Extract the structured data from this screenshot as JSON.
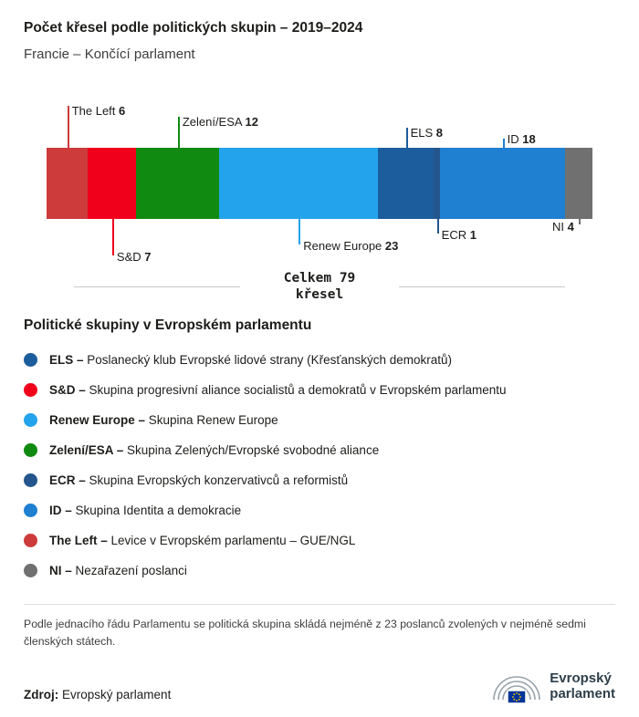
{
  "header": {
    "title": "Počet křesel podle politických skupin – 2019–2024",
    "subtitle": "Francie – Končící parlament"
  },
  "chart_data": {
    "type": "bar",
    "stacked": true,
    "orientation": "horizontal",
    "title": "Počet křesel podle politických skupin – 2019–2024",
    "subtitle": "Francie – Končící parlament",
    "total": 79,
    "total_text": "Celkem 79\nkřesel",
    "xlim": [
      0,
      79
    ],
    "categories": [
      "The Left",
      "S&D",
      "Zelení/ESA",
      "Renew Europe",
      "ELS",
      "ECR",
      "ID",
      "NI"
    ],
    "values": [
      6,
      7,
      12,
      23,
      8,
      1,
      18,
      4
    ],
    "segments": [
      {
        "name": "The Left",
        "value": 6,
        "color": "#cd3b3b",
        "label_pos": "above",
        "tier": 3
      },
      {
        "name": "S&D",
        "value": 7,
        "color": "#f0001b",
        "label_pos": "below",
        "tier": 3
      },
      {
        "name": "Zelení/ESA",
        "value": 12,
        "color": "#108a10",
        "label_pos": "above",
        "tier": 2
      },
      {
        "name": "Renew Europe",
        "value": 23,
        "color": "#23a3eb",
        "label_pos": "below",
        "tier": 2
      },
      {
        "name": "ELS",
        "value": 8,
        "color": "#1c5d9e",
        "label_pos": "above",
        "tier": 1
      },
      {
        "name": "ECR",
        "value": 1,
        "color": "#24568d",
        "label_pos": "below",
        "tier": 1
      },
      {
        "name": "ID",
        "value": 18,
        "color": "#1f7fd1",
        "label_pos": "above",
        "tier": 0
      },
      {
        "name": "NI",
        "value": 4,
        "color": "#707070",
        "label_pos": "below",
        "tier": 0,
        "text_side": "left"
      }
    ]
  },
  "legend": {
    "heading": "Politické skupiny v Evropském parlamentu",
    "items": [
      {
        "name": "ELS",
        "desc": "Poslanecký klub Evropské lidové strany (Křesťanských demokratů)",
        "color": "#1c5d9e"
      },
      {
        "name": "S&D",
        "desc": "Skupina progresivní aliance socialistů a demokratů v Evropském parlamentu",
        "color": "#f0001b"
      },
      {
        "name": "Renew Europe",
        "desc": "Skupina Renew Europe",
        "color": "#23a3eb"
      },
      {
        "name": "Zelení/ESA",
        "desc": "Skupina Zelených/Evropské svobodné aliance",
        "color": "#108a10"
      },
      {
        "name": "ECR",
        "desc": "Skupina Evropských konzervativců a reformistů",
        "color": "#24568d"
      },
      {
        "name": "ID",
        "desc": "Skupina Identita a demokracie",
        "color": "#1f7fd1"
      },
      {
        "name": "The Left",
        "desc": "Levice v Evropském parlamentu – GUE/NGL",
        "color": "#cd3b3b"
      },
      {
        "name": "NI",
        "desc": "Nezařazení poslanci",
        "color": "#707070"
      }
    ]
  },
  "footnote": "Podle jednacího řádu Parlamentu se politická skupina skládá nejméně z 23 poslanců zvolených v nejméně sedmi členských státech.",
  "source": {
    "label": "Zdroj:",
    "value": "Evropský parlament"
  },
  "logo": {
    "line1": "Evropský",
    "line2": "parlament"
  }
}
